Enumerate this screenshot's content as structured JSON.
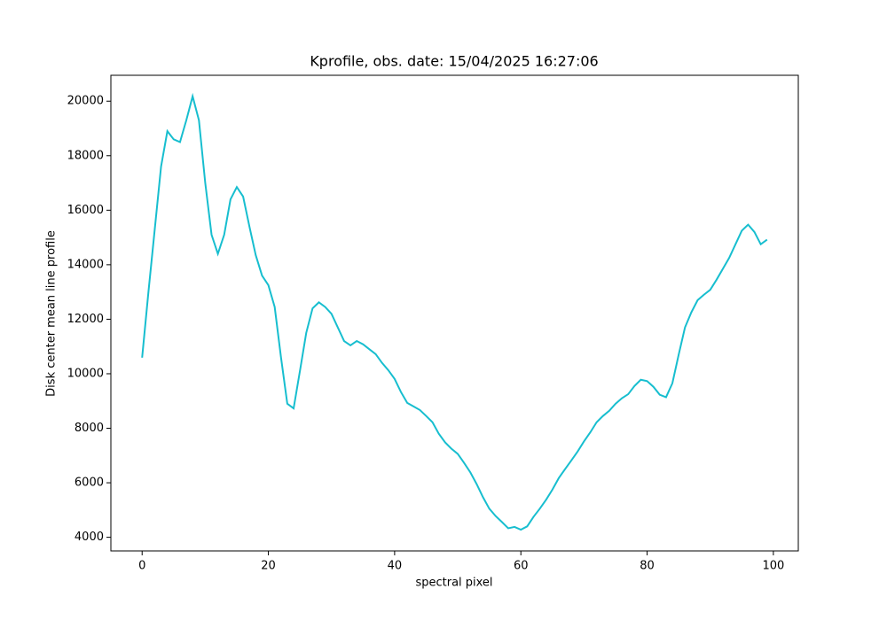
{
  "chart_data": {
    "type": "line",
    "title": "Kprofile, obs. date: 15/04/2025 16:27:06",
    "xlabel": "spectral pixel",
    "ylabel": "Disk center mean line profile",
    "x": [
      0,
      1,
      2,
      3,
      4,
      5,
      6,
      7,
      8,
      9,
      10,
      11,
      12,
      13,
      14,
      15,
      16,
      17,
      18,
      19,
      20,
      21,
      22,
      23,
      24,
      25,
      26,
      27,
      28,
      29,
      30,
      31,
      32,
      33,
      34,
      35,
      36,
      37,
      38,
      39,
      40,
      41,
      42,
      43,
      44,
      45,
      46,
      47,
      48,
      49,
      50,
      51,
      52,
      53,
      54,
      55,
      56,
      57,
      58,
      59,
      60,
      61,
      62,
      63,
      64,
      65,
      66,
      67,
      68,
      69,
      70,
      71,
      72,
      73,
      74,
      75,
      76,
      77,
      78,
      79,
      80,
      81,
      82,
      83,
      84,
      85,
      86,
      87,
      88,
      89,
      90,
      91,
      92,
      93,
      94,
      95,
      96,
      97,
      98,
      99
    ],
    "series": [
      {
        "color": "#17becf",
        "values": [
          10590,
          13000,
          15300,
          17600,
          18900,
          18600,
          18500,
          19300,
          20180,
          19300,
          17000,
          15100,
          14400,
          15100,
          16400,
          16850,
          16500,
          15400,
          14350,
          13600,
          13250,
          12450,
          10600,
          8900,
          8730,
          10100,
          11500,
          12400,
          12620,
          12450,
          12200,
          11700,
          11200,
          11040,
          11200,
          11080,
          10900,
          10720,
          10400,
          10130,
          9810,
          9330,
          8930,
          8800,
          8670,
          8450,
          8220,
          7800,
          7480,
          7250,
          7060,
          6730,
          6380,
          5950,
          5470,
          5050,
          4780,
          4560,
          4330,
          4380,
          4280,
          4400,
          4750,
          5050,
          5380,
          5750,
          6170,
          6500,
          6820,
          7150,
          7520,
          7850,
          8220,
          8450,
          8640,
          8900,
          9100,
          9250,
          9550,
          9780,
          9730,
          9520,
          9230,
          9140,
          9650,
          10700,
          11700,
          12250,
          12700,
          12900,
          13080,
          13450,
          13850,
          14250,
          14750,
          15250,
          15470,
          15200,
          14750,
          14920
        ]
      }
    ],
    "xlim": [
      -4.95,
      103.95
    ],
    "ylim": [
      3500,
      20950
    ],
    "xticks": [
      0,
      20,
      40,
      60,
      80,
      100
    ],
    "yticks": [
      4000,
      6000,
      8000,
      10000,
      12000,
      14000,
      16000,
      18000,
      20000
    ]
  }
}
